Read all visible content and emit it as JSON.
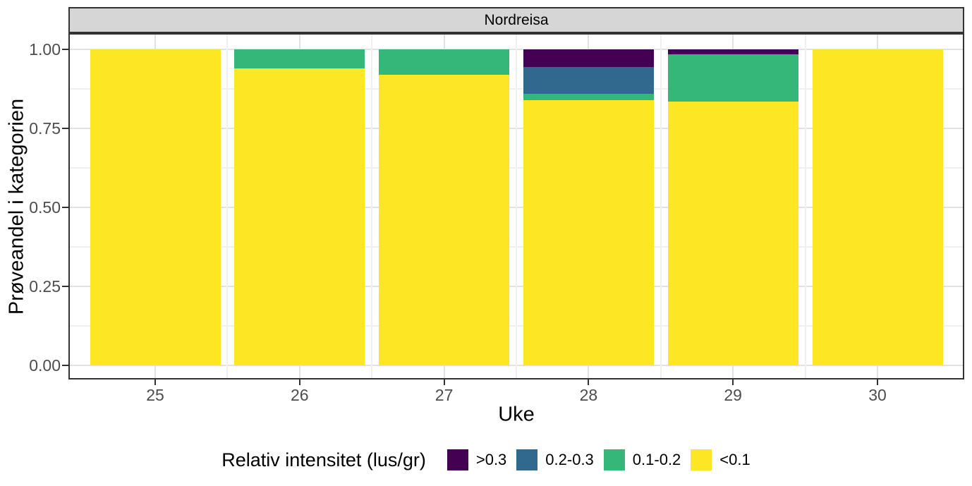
{
  "figure": {
    "facet_title": "Nordreisa",
    "x_axis": {
      "title": "Uke",
      "tick_labels": [
        "25",
        "26",
        "27",
        "28",
        "29",
        "30"
      ]
    },
    "y_axis": {
      "title": "Prøveandel i kategorien",
      "tick_labels": [
        "0.00",
        "0.25",
        "0.50",
        "0.75",
        "1.00"
      ]
    },
    "legend": {
      "title": "Relativ intensitet (lus/gr)",
      "labels": [
        ">0.3",
        "0.2-0.3",
        "0.1-0.2",
        "<0.1"
      ]
    }
  },
  "chart_data": {
    "type": "bar",
    "stacked": true,
    "facet": "Nordreisa",
    "title": "Nordreisa",
    "xlabel": "Uke",
    "ylabel": "Prøveandel i kategorien",
    "categories": [
      25,
      26,
      27,
      28,
      29,
      30
    ],
    "series": [
      {
        "name": "<0.1",
        "color": "#FDE725",
        "values": [
          1.0,
          0.94,
          0.92,
          0.84,
          0.835,
          1.0
        ]
      },
      {
        "name": "0.1-0.2",
        "color": "#35B779",
        "values": [
          0,
          0.06,
          0.08,
          0.02,
          0.15,
          0
        ]
      },
      {
        "name": "0.2-0.3",
        "color": "#31688E",
        "values": [
          0,
          0,
          0,
          0.085,
          0,
          0
        ]
      },
      {
        "name": ">0.3",
        "color": "#440154",
        "values": [
          0,
          0,
          0,
          0.055,
          0.015,
          0
        ]
      }
    ],
    "ylim": [
      0,
      1
    ],
    "yticks": [
      0,
      0.25,
      0.5,
      0.75,
      1.0
    ],
    "yticks_minor": [
      0.125,
      0.375,
      0.625,
      0.875
    ],
    "grid": true,
    "legend_position": "bottom",
    "legend_title": "Relativ intensitet (lus/gr)",
    "legend_order": [
      ">0.3",
      "0.2-0.3",
      "0.1-0.2",
      "<0.1"
    ],
    "colors": {
      "strip_fill": "#d6d6d6",
      "panel_border": "#333333",
      "grid_major": "#e2e2e2",
      "grid_minor": "#f0f0f0",
      "tick_text": "#4d4d4d"
    }
  }
}
